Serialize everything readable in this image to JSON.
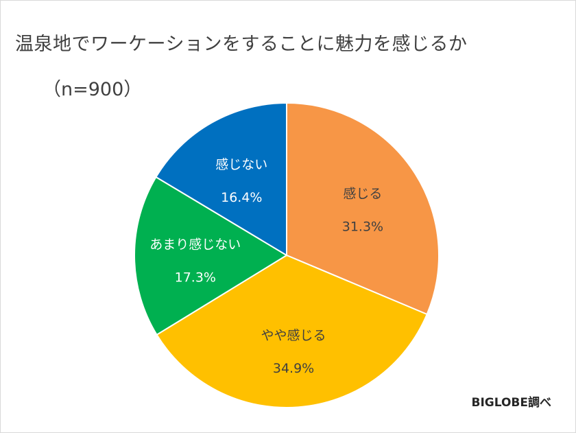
{
  "chart_data": {
    "type": "pie",
    "title": "温泉地でワーケーションをすることに魅力を感じるか",
    "subtitle": "（n=900）",
    "source": "BIGLOBE調べ",
    "slices": [
      {
        "label": "感じる",
        "value": 31.3,
        "display": "31.3%",
        "color": "#F79646",
        "text_color": "#404040"
      },
      {
        "label": "やや感じる",
        "value": 34.9,
        "display": "34.9%",
        "color": "#FFC000",
        "text_color": "#404040"
      },
      {
        "label": "あまり感じない",
        "value": 17.3,
        "display": "17.3%",
        "color": "#00B050",
        "text_color": "#ffffff"
      },
      {
        "label": "感じない",
        "value": 16.4,
        "display": "16.4%",
        "color": "#0070C0",
        "text_color": "#ffffff"
      }
    ]
  }
}
